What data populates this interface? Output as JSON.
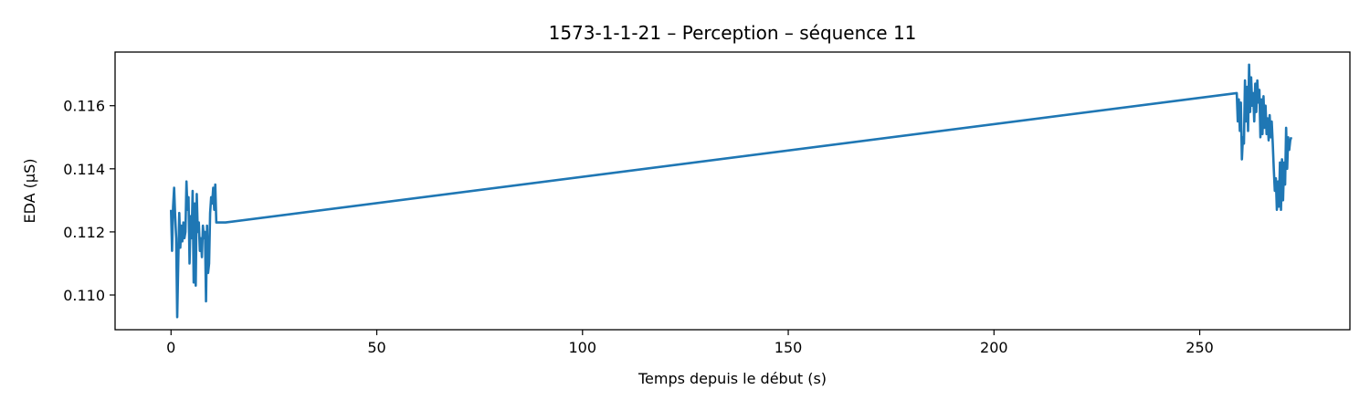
{
  "chart_data": {
    "type": "line",
    "title": "1573-1-1-21 – Perception – séquence 11",
    "xlabel": "Temps depuis le début (s)",
    "ylabel": "EDA (µS)",
    "xlim": [
      -13.6,
      286.5
    ],
    "ylim": [
      0.1089,
      0.1177
    ],
    "xticks": [
      0,
      50,
      100,
      150,
      200,
      250
    ],
    "xtick_labels": [
      "0",
      "50",
      "100",
      "150",
      "200",
      "250"
    ],
    "yticks": [
      0.11,
      0.112,
      0.114,
      0.116
    ],
    "ytick_labels": [
      "0.110",
      "0.112",
      "0.114",
      "0.116"
    ],
    "grid": false,
    "series": [
      {
        "color": "#1f77b4",
        "x": [
          0.0,
          0.25,
          0.5,
          0.75,
          1.0,
          1.25,
          1.5,
          1.75,
          2.0,
          2.25,
          2.5,
          2.75,
          3.0,
          3.25,
          3.5,
          3.75,
          4.0,
          4.25,
          4.5,
          4.75,
          5.0,
          5.25,
          5.5,
          5.75,
          6.0,
          6.25,
          6.5,
          6.75,
          7.0,
          7.25,
          7.5,
          7.75,
          8.0,
          8.25,
          8.5,
          8.75,
          9.0,
          9.25,
          9.5,
          9.75,
          10.0,
          10.25,
          10.5,
          10.75,
          11.0,
          11.25,
          11.5,
          11.75,
          12.0,
          12.25,
          12.5,
          12.75,
          13.0,
          13.25,
          259.0,
          259.25,
          259.5,
          259.75,
          260.0,
          260.25,
          260.5,
          260.75,
          261.0,
          261.25,
          261.5,
          261.75,
          262.0,
          262.25,
          262.5,
          262.75,
          263.0,
          263.25,
          263.5,
          263.75,
          264.0,
          264.25,
          264.5,
          264.75,
          265.0,
          265.25,
          265.5,
          265.75,
          266.0,
          266.25,
          266.5,
          266.75,
          267.0,
          267.25,
          267.5,
          267.75,
          268.0,
          268.25,
          268.5,
          268.75,
          269.0,
          269.25,
          269.5,
          269.75,
          270.0,
          270.25,
          270.5,
          270.75,
          271.0,
          271.25,
          271.5,
          271.75,
          272.0,
          272.25
        ],
        "y": [
          0.1127,
          0.1114,
          0.1128,
          0.1134,
          0.1125,
          0.1118,
          0.1093,
          0.111,
          0.1126,
          0.1115,
          0.1122,
          0.1117,
          0.1123,
          0.1118,
          0.112,
          0.1136,
          0.1127,
          0.1131,
          0.111,
          0.1125,
          0.1118,
          0.1133,
          0.1104,
          0.1129,
          0.1103,
          0.1132,
          0.112,
          0.1123,
          0.1114,
          0.1118,
          0.1112,
          0.1122,
          0.1118,
          0.112,
          0.1098,
          0.1122,
          0.1107,
          0.111,
          0.1126,
          0.1131,
          0.1129,
          0.1134,
          0.1127,
          0.1135,
          0.1123,
          0.1123,
          0.1123,
          0.1123,
          0.1123,
          0.1123,
          0.1123,
          0.1123,
          0.1123,
          0.1123,
          0.1164,
          0.1155,
          0.1162,
          0.1152,
          0.1161,
          0.1143,
          0.115,
          0.1148,
          0.1168,
          0.1155,
          0.1166,
          0.1152,
          0.1173,
          0.1158,
          0.1169,
          0.116,
          0.1164,
          0.1155,
          0.1167,
          0.1158,
          0.1168,
          0.1161,
          0.1165,
          0.115,
          0.1162,
          0.1151,
          0.1163,
          0.1153,
          0.116,
          0.1151,
          0.1156,
          0.1149,
          0.1157,
          0.115,
          0.1155,
          0.1148,
          0.114,
          0.1133,
          0.1137,
          0.1127,
          0.1136,
          0.1128,
          0.1142,
          0.1127,
          0.1143,
          0.113,
          0.1142,
          0.1135,
          0.1153,
          0.114,
          0.115,
          0.1146,
          0.1149,
          0.115
        ]
      }
    ]
  }
}
